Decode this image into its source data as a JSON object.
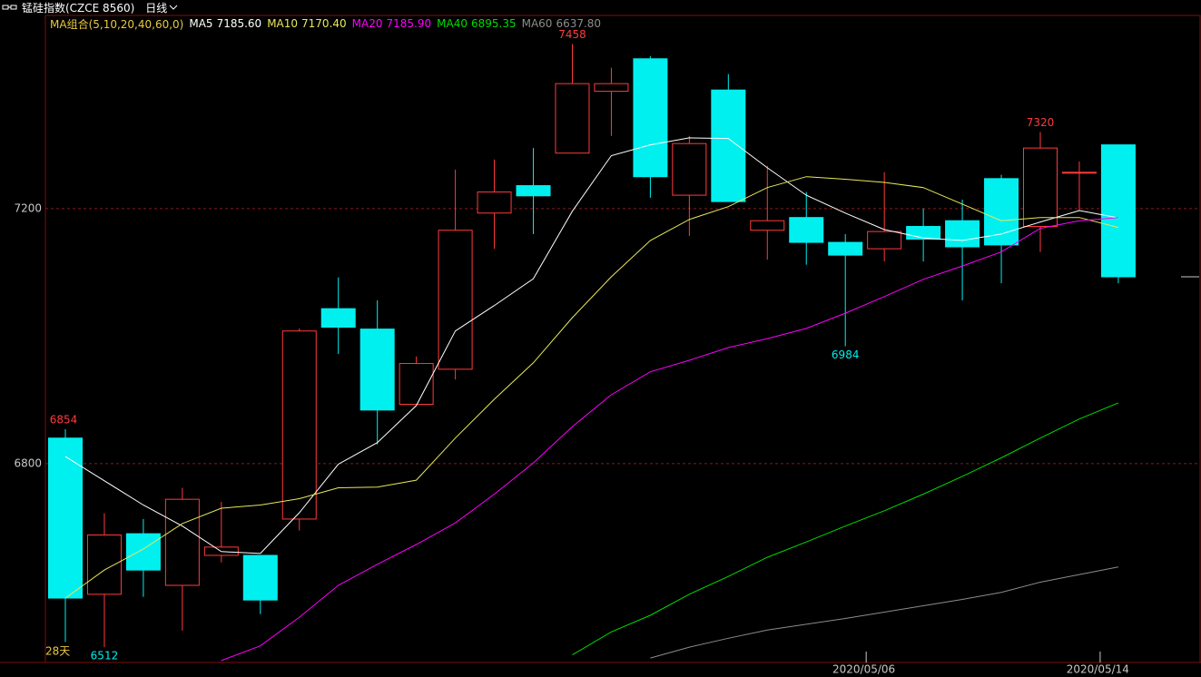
{
  "chart_data": {
    "type": "candlestick",
    "title": "锰硅指数(CZCE 8560)",
    "period": "日线",
    "legend_title": "MA组合(5,10,20,40,60,0)",
    "span_label": "28天",
    "categories": [
      null,
      null,
      null,
      null,
      null,
      null,
      null,
      null,
      null,
      null,
      null,
      null,
      null,
      null,
      null,
      null,
      null,
      null,
      null,
      null,
      null,
      "2020/05/06",
      null,
      null,
      null,
      null,
      null,
      "2020/05/14"
    ],
    "open": [
      6840,
      6595,
      6690,
      6609,
      6656,
      6656,
      6713,
      7043,
      7011,
      6893,
      6948,
      7193,
      7236,
      7287,
      7384,
      7435,
      7221,
      7386,
      7166,
      7186,
      7147,
      7137,
      7172,
      7181,
      7247,
      7172,
      7257,
      7300
    ],
    "high": [
      6854,
      6722,
      6713,
      6762,
      6740,
      6656,
      7012,
      7092,
      7056,
      6968,
      7261,
      7277,
      7295,
      7458,
      7421,
      7439,
      7314,
      7411,
      7267,
      7226,
      7160,
      7257,
      7200,
      7214,
      7253,
      7320,
      7274,
      7300
    ],
    "low": [
      6520,
      6512,
      6591,
      6538,
      6645,
      6564,
      6695,
      6972,
      6830,
      6893,
      6932,
      7137,
      7160,
      7287,
      7314,
      7217,
      7157,
      7211,
      7120,
      7112,
      6984,
      7117,
      7117,
      7056,
      7083,
      7132,
      7197,
      7083
    ],
    "close": [
      6589,
      6688,
      6633,
      6744,
      6669,
      6586,
      7008,
      7014,
      6884,
      6957,
      7166,
      7226,
      7220,
      7396,
      7396,
      7250,
      7302,
      7211,
      7181,
      7147,
      7127,
      7164,
      7152,
      7140,
      7143,
      7295,
      7257,
      7093
    ],
    "up_color": "#ff3b3b",
    "down_color": "#00f0f0",
    "series": [
      {
        "name": "MA5",
        "color": "#ffffff",
        "value_label": "7185.60",
        "values": [
          6811,
          6773,
          6735,
          6702,
          6662,
          6659,
          6723,
          6799,
          6833,
          6891,
          7008,
          7048,
          7090,
          7196,
          7283,
          7300,
          7311,
          7310,
          7264,
          7221,
          7193,
          7167,
          7154,
          7150,
          7160,
          7179,
          7197,
          7185.6
        ]
      },
      {
        "name": "MA10",
        "color": "#e8e858",
        "value_label": "7170.40",
        "values": [
          6589,
          6633,
          6666,
          6706,
          6730,
          6735,
          6745,
          6762,
          6763,
          6774,
          6840,
          6901,
          6958,
          7029,
          7093,
          7150,
          7183,
          7203,
          7233,
          7250,
          7246,
          7241,
          7233,
          7207,
          7181,
          7186,
          7186,
          7170.4
        ]
      },
      {
        "name": "MA20",
        "color": "#ff00ff",
        "value_label": "7185.90",
        "values": [
          null,
          null,
          null,
          null,
          6491,
          6514,
          6559,
          6609,
          6642,
          6673,
          6707,
          6752,
          6801,
          6858,
          6908,
          6944,
          6962,
          6982,
          6996,
          7012,
          7036,
          7062,
          7089,
          7110,
          7132,
          7169,
          7181,
          7185.9
        ]
      },
      {
        "name": "MA40",
        "color": "#00dd00",
        "value_label": "6895.35",
        "values": [
          null,
          null,
          null,
          null,
          null,
          null,
          null,
          null,
          null,
          null,
          null,
          null,
          null,
          6500,
          6536,
          6562,
          6595,
          6623,
          6653,
          6677,
          6702,
          6726,
          6752,
          6780,
          6809,
          6840,
          6870,
          6895.35
        ]
      },
      {
        "name": "MA60",
        "color": "#8c8c8c",
        "value_label": "6637.80",
        "values": [
          null,
          null,
          null,
          null,
          null,
          null,
          null,
          null,
          null,
          null,
          null,
          null,
          null,
          null,
          null,
          6495,
          6512,
          6526,
          6539,
          6548,
          6557,
          6567,
          6577,
          6587,
          6598,
          6614,
          6626,
          6637.8
        ]
      }
    ],
    "ylim": [
      6488,
      7503
    ],
    "yticks": [
      6800,
      7200
    ],
    "grid": true
  }
}
